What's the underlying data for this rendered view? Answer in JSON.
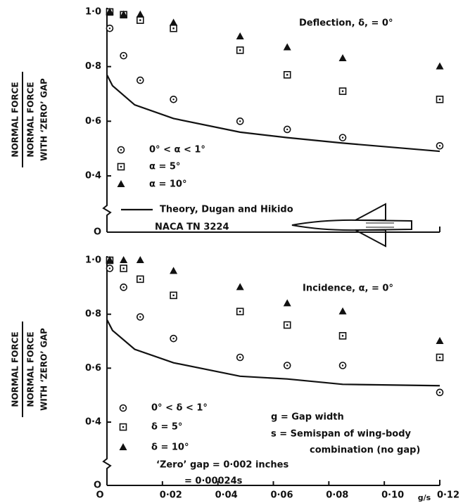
{
  "chart_data": [
    {
      "type": "scatter",
      "ylabel": {
        "numerator": "NORMAL FORCE",
        "denominator": [
          "NORMAL FORCE",
          "WITH ‘ZERO’ GAP"
        ]
      },
      "annotation": "Deflection, δ, = 0°",
      "note": "NACA TN 3224",
      "xlim": [
        0,
        0.12
      ],
      "ylim": [
        0,
        1.0
      ],
      "yticks": [
        {
          "value": 0,
          "label": "O"
        },
        {
          "value": 0.4,
          "label": "0·4"
        },
        {
          "value": 0.6,
          "label": "0·6"
        },
        {
          "value": 0.8,
          "label": "0·8"
        },
        {
          "value": 1.0,
          "label": "1·0"
        }
      ],
      "series": [
        {
          "name": "0° < α < 1°",
          "marker": "circle",
          "color": "#111",
          "x": [
            0.001,
            0.006,
            0.012,
            0.024,
            0.048,
            0.065,
            0.085,
            0.12
          ],
          "values": [
            0.94,
            0.84,
            0.75,
            0.68,
            0.6,
            0.57,
            0.54,
            0.51
          ]
        },
        {
          "name": "α = 5°",
          "marker": "square",
          "color": "#111",
          "x": [
            0.001,
            0.006,
            0.012,
            0.024,
            0.048,
            0.065,
            0.085,
            0.12
          ],
          "values": [
            1.0,
            0.99,
            0.97,
            0.94,
            0.86,
            0.77,
            0.71,
            0.68
          ]
        },
        {
          "name": "α = 10°",
          "marker": "triangle",
          "color": "#111",
          "x": [
            0.001,
            0.006,
            0.012,
            0.024,
            0.048,
            0.065,
            0.085,
            0.12
          ],
          "values": [
            1.0,
            0.99,
            0.99,
            0.96,
            0.91,
            0.87,
            0.83,
            0.8
          ]
        },
        {
          "name": "Theory, Dugan and Hikido",
          "marker": "line",
          "color": "#111",
          "x": [
            0,
            0.002,
            0.01,
            0.024,
            0.048,
            0.065,
            0.085,
            0.12
          ],
          "values": [
            0.77,
            0.73,
            0.66,
            0.61,
            0.56,
            0.54,
            0.52,
            0.49
          ]
        }
      ]
    },
    {
      "type": "scatter",
      "ylabel": {
        "numerator": "NORMAL FORCE",
        "denominator": [
          "NORMAL FORCE",
          "WITH ‘ZERO’ GAP"
        ]
      },
      "annotation": "Incidence, α, = 0°",
      "notes": [
        "g = Gap width",
        "s = Semispan of wing-body",
        "combination (no gap)",
        "‘Zero’ gap = 0·002 inches",
        "= 0·00024s"
      ],
      "xlabel": "g/s",
      "xlim": [
        0,
        0.12
      ],
      "ylim": [
        0,
        1.0
      ],
      "xticks": [
        {
          "value": 0,
          "label": "O"
        },
        {
          "value": 0.02,
          "label": "0·02"
        },
        {
          "value": 0.04,
          "label": "0·04"
        },
        {
          "value": 0.06,
          "label": "0·06"
        },
        {
          "value": 0.08,
          "label": "0·08"
        },
        {
          "value": 0.1,
          "label": "0·10"
        },
        {
          "value": 0.12,
          "label": "0·12"
        }
      ],
      "yticks": [
        {
          "value": 0,
          "label": "O"
        },
        {
          "value": 0.4,
          "label": "0·4"
        },
        {
          "value": 0.6,
          "label": "0·6"
        },
        {
          "value": 0.8,
          "label": "0·8"
        },
        {
          "value": 1.0,
          "label": "1·0"
        }
      ],
      "series": [
        {
          "name": "0° < δ < 1°",
          "marker": "circle",
          "color": "#111",
          "x": [
            0.001,
            0.006,
            0.012,
            0.024,
            0.048,
            0.065,
            0.085,
            0.12
          ],
          "values": [
            0.97,
            0.9,
            0.79,
            0.71,
            0.64,
            0.61,
            0.61,
            0.51
          ]
        },
        {
          "name": "δ = 5°",
          "marker": "square",
          "color": "#111",
          "x": [
            0.001,
            0.006,
            0.012,
            0.024,
            0.048,
            0.065,
            0.085,
            0.12
          ],
          "values": [
            1.0,
            0.97,
            0.93,
            0.87,
            0.81,
            0.76,
            0.72,
            0.64
          ]
        },
        {
          "name": "δ = 10°",
          "marker": "triangle",
          "color": "#111",
          "x": [
            0.001,
            0.006,
            0.012,
            0.024,
            0.048,
            0.065,
            0.085,
            0.12
          ],
          "values": [
            1.0,
            1.0,
            1.0,
            0.96,
            0.9,
            0.84,
            0.81,
            0.7
          ]
        },
        {
          "name": "Theory, Dugan and Hikido",
          "marker": "line",
          "color": "#111",
          "x": [
            0,
            0.002,
            0.01,
            0.024,
            0.048,
            0.065,
            0.085,
            0.12
          ],
          "values": [
            0.78,
            0.74,
            0.67,
            0.62,
            0.57,
            0.56,
            0.54,
            0.535
          ]
        }
      ]
    }
  ]
}
